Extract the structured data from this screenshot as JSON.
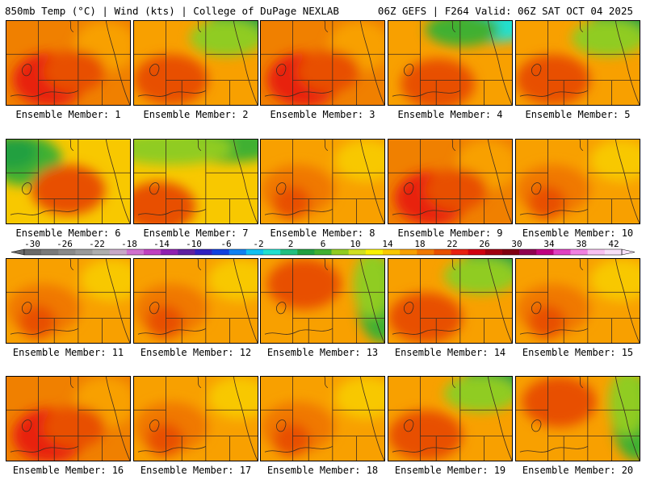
{
  "header": {
    "left": "850mb Temp (°C) | Wind (kts) | College of DuPage NEXLAB",
    "right": "06Z GEFS | F264 Valid: 06Z SAT OCT 04 2025"
  },
  "label_prefix": "Ensemble Member: ",
  "members": [
    {
      "id": 1,
      "tone": "hot"
    },
    {
      "id": 2,
      "tone": "ne_green"
    },
    {
      "id": 3,
      "tone": "hot"
    },
    {
      "id": 4,
      "tone": "ne_cyan"
    },
    {
      "id": 5,
      "tone": "ne_green"
    },
    {
      "id": 6,
      "tone": "west_green"
    },
    {
      "id": 7,
      "tone": "north_green"
    },
    {
      "id": 8,
      "tone": "warm"
    },
    {
      "id": 9,
      "tone": "hot"
    },
    {
      "id": 10,
      "tone": "warm"
    },
    {
      "id": 11,
      "tone": "warm"
    },
    {
      "id": 12,
      "tone": "warm"
    },
    {
      "id": 13,
      "tone": "east_green"
    },
    {
      "id": 14,
      "tone": "ne_green"
    },
    {
      "id": 15,
      "tone": "warm"
    },
    {
      "id": 16,
      "tone": "hot"
    },
    {
      "id": 17,
      "tone": "warm"
    },
    {
      "id": 18,
      "tone": "warm"
    },
    {
      "id": 19,
      "tone": "ne_green"
    },
    {
      "id": 20,
      "tone": "east_green"
    }
  ],
  "colorbar": {
    "ticks": [
      "-30",
      "-26",
      "-22",
      "-18",
      "-14",
      "-10",
      "-6",
      "-2",
      "2",
      "6",
      "10",
      "14",
      "18",
      "22",
      "26",
      "30",
      "34",
      "38",
      "42"
    ],
    "colors": [
      "#6a6a6a",
      "#7a7a7a",
      "#8a8a8a",
      "#9a9a9a",
      "#aeaeae",
      "#c8a8c8",
      "#d070d0",
      "#c040c0",
      "#9020b0",
      "#6020a0",
      "#3020c0",
      "#1040e0",
      "#1080f0",
      "#10c0f0",
      "#20e0d0",
      "#20c080",
      "#20a040",
      "#40b030",
      "#90cc20",
      "#d0e020",
      "#f8f000",
      "#f8c800",
      "#f8a000",
      "#f07800",
      "#e85000",
      "#e82010",
      "#d00010",
      "#a00010",
      "#800010",
      "#900050",
      "#c00080",
      "#e040c0",
      "#f080e0",
      "#f8c0f0",
      "#f8e0f8"
    ]
  }
}
